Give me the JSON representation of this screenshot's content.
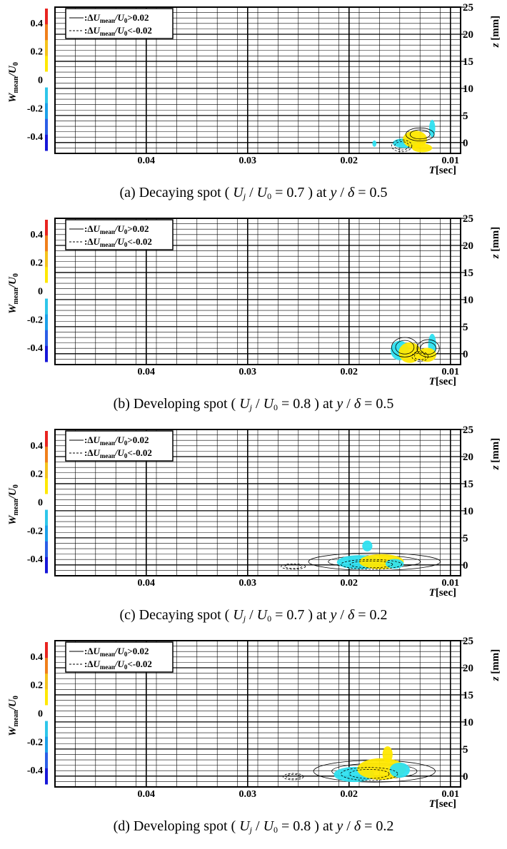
{
  "colorbar": {
    "title_main": "W",
    "title_sub": "mean",
    "title_tail": "/U",
    "title_tail_sub": "0",
    "ticks": [
      "0.4",
      "0.2",
      "0",
      "-0.2",
      "-0.4"
    ],
    "tick_values": [
      0.4,
      0.2,
      0,
      -0.2,
      -0.4
    ],
    "range": [
      -0.5,
      0.5
    ],
    "colors": [
      "#e8231f",
      "#f07f1a",
      "#f4c21a",
      "#ffe800",
      "#ffffff",
      "#2ec6ea",
      "#1aa0e8",
      "#2a5de6",
      "#1616d8"
    ]
  },
  "legend": {
    "solid": {
      "delta": "Δ",
      "u": "U",
      "sub": "mean",
      "tail": "/U",
      "tail_sub": "0",
      "cmp": ">0.02"
    },
    "dashed": {
      "delta": "Δ",
      "u": "U",
      "sub": "mean",
      "tail": "/U",
      "tail_sub": "0",
      "cmp": "<-0.02"
    }
  },
  "axes": {
    "x_ticks": [
      "0.04",
      "0.03",
      "0.02",
      "0.01"
    ],
    "x_tick_values": [
      0.04,
      0.03,
      0.02,
      0.01
    ],
    "xlabel": "T[sec]",
    "xlabel_italic": "T",
    "xlabel_unit": "[sec]",
    "y_ticks": [
      "25",
      "20",
      "15",
      "10",
      "5",
      "0"
    ],
    "y_tick_values": [
      25,
      20,
      15,
      10,
      5,
      0
    ],
    "ylabel_italic": "z",
    "ylabel_unit": " [mm]"
  },
  "chart_data": [
    {
      "type": "contour",
      "caption": "(a) Decaying spot ( U j / U 0 = 0.7 ) at y / δ = 0.5",
      "caption_prefix": "(a) Decaying spot (",
      "uj": "U",
      "uj_sub": "j",
      "u0": "U",
      "u0_sub": "0",
      "ratio": "= 0.7",
      "y_delta": "y",
      "delta": "δ",
      "y_val": "= 0.5",
      "xlim": [
        0.049,
        0.009
      ],
      "ylim": [
        -2,
        25
      ],
      "blobs": [
        {
          "kind": "cyan",
          "t": 0.0175,
          "z": -0.2,
          "rt": 0.0002,
          "rz": 0.6
        },
        {
          "kind": "cyan",
          "t": 0.0145,
          "z": -0.1,
          "rt": 0.0012,
          "rz": 0.9
        },
        {
          "kind": "yellow",
          "t": 0.0135,
          "z": 0.6,
          "rt": 0.0012,
          "rz": 1.6
        },
        {
          "kind": "cyan",
          "t": 0.0118,
          "z": 2.6,
          "rt": 0.0003,
          "rz": 1.6
        },
        {
          "kind": "yellow",
          "t": 0.0128,
          "z": -1.0,
          "rt": 0.001,
          "rz": 0.8
        },
        {
          "kind": "solid",
          "t": 0.013,
          "z": 1.5,
          "rt": 0.0014,
          "rz": 1.2
        },
        {
          "kind": "dashed",
          "t": 0.0148,
          "z": -0.6,
          "rt": 0.001,
          "rz": 1.1
        }
      ]
    },
    {
      "type": "contour",
      "caption": "(b) Developing spot ( U j / U 0 = 0.8 ) at y / δ = 0.5",
      "caption_prefix": "(b) Developing spot (",
      "uj": "U",
      "uj_sub": "j",
      "u0": "U",
      "u0_sub": "0",
      "ratio": "= 0.8",
      "y_delta": "y",
      "delta": "δ",
      "y_val": "= 0.5",
      "xlim": [
        0.049,
        0.009
      ],
      "ylim": [
        -2,
        25
      ],
      "blobs": [
        {
          "kind": "cyan",
          "t": 0.015,
          "z": 0.6,
          "rt": 0.0009,
          "rz": 1.8
        },
        {
          "kind": "yellow",
          "t": 0.014,
          "z": 0.2,
          "rt": 0.0011,
          "rz": 1.9
        },
        {
          "kind": "solid",
          "t": 0.0145,
          "z": 1.2,
          "rt": 0.0013,
          "rz": 1.8
        },
        {
          "kind": "cyan",
          "t": 0.0118,
          "z": 1.5,
          "rt": 0.0004,
          "rz": 2.2
        },
        {
          "kind": "yellow",
          "t": 0.0123,
          "z": -0.2,
          "rt": 0.0009,
          "rz": 1.3
        },
        {
          "kind": "solid",
          "t": 0.0122,
          "z": 1.0,
          "rt": 0.0011,
          "rz": 1.6
        },
        {
          "kind": "dashed",
          "t": 0.013,
          "z": -0.5,
          "rt": 0.0008,
          "rz": 0.9
        }
      ]
    },
    {
      "type": "contour",
      "caption": "(c) Decaying spot ( U j / U 0 = 0.7 ) at y / δ = 0.2",
      "caption_prefix": "(c) Decaying spot (",
      "uj": "U",
      "uj_sub": "j",
      "u0": "U",
      "u0_sub": "0",
      "ratio": "= 0.7",
      "y_delta": "y",
      "delta": "δ",
      "y_val": "= 0.2",
      "xlim": [
        0.049,
        0.009
      ],
      "ylim": [
        -2,
        25
      ],
      "blobs": [
        {
          "kind": "solid",
          "t": 0.0175,
          "z": 0.6,
          "rt": 0.0065,
          "rz": 1.6
        },
        {
          "kind": "dashed",
          "t": 0.0255,
          "z": -0.3,
          "rt": 0.0012,
          "rz": 0.5
        },
        {
          "kind": "cyan",
          "t": 0.019,
          "z": 0.5,
          "rt": 0.0022,
          "rz": 1.3
        },
        {
          "kind": "yellow",
          "t": 0.0168,
          "z": 0.6,
          "rt": 0.0022,
          "rz": 1.4
        },
        {
          "kind": "cyan",
          "t": 0.0182,
          "z": 3.5,
          "rt": 0.0005,
          "rz": 1.0
        },
        {
          "kind": "cyan",
          "t": 0.0155,
          "z": 0.2,
          "rt": 0.0009,
          "rz": 0.9
        },
        {
          "kind": "dashed",
          "t": 0.0178,
          "z": 0.1,
          "rt": 0.003,
          "rz": 0.9
        }
      ]
    },
    {
      "type": "contour",
      "caption": "(d) Developing spot ( U j / U 0 = 0.8 ) at y / δ = 0.2",
      "caption_prefix": "(d) Developing spot (",
      "uj": "U",
      "uj_sub": "j",
      "u0": "U",
      "u0_sub": "0",
      "ratio": "= 0.8",
      "y_delta": "y",
      "delta": "δ",
      "y_val": "= 0.2",
      "xlim": [
        0.049,
        0.009
      ],
      "ylim": [
        -2,
        25
      ],
      "blobs": [
        {
          "kind": "solid",
          "t": 0.0175,
          "z": 0.9,
          "rt": 0.006,
          "rz": 2.0
        },
        {
          "kind": "dashed",
          "t": 0.0255,
          "z": -0.1,
          "rt": 0.001,
          "rz": 0.6
        },
        {
          "kind": "cyan",
          "t": 0.0195,
          "z": 0.3,
          "rt": 0.002,
          "rz": 1.4
        },
        {
          "kind": "yellow",
          "t": 0.0168,
          "z": 1.3,
          "rt": 0.0024,
          "rz": 2.0
        },
        {
          "kind": "yellow",
          "t": 0.0162,
          "z": 4.0,
          "rt": 0.0005,
          "rz": 1.5
        },
        {
          "kind": "cyan",
          "t": 0.015,
          "z": 1.1,
          "rt": 0.001,
          "rz": 1.4
        },
        {
          "kind": "dashed",
          "t": 0.018,
          "z": 0.4,
          "rt": 0.0028,
          "rz": 1.2
        }
      ]
    }
  ]
}
